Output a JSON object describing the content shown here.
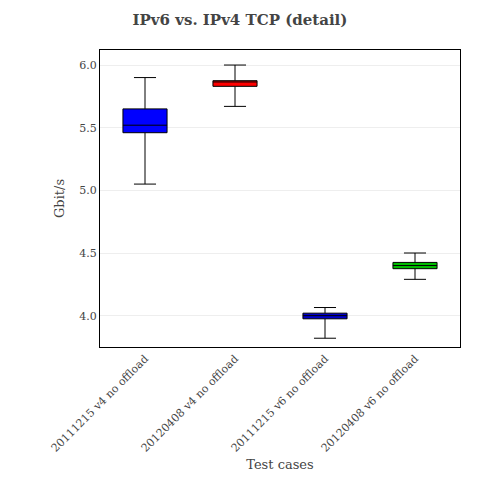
{
  "chart_data": {
    "type": "box",
    "title": "IPv6 vs. IPv4 TCP (detail)",
    "xlabel": "Test cases",
    "ylabel": "Gbit/s",
    "categories": [
      "20111215 v4 no offload",
      "20120408 v4 no offload",
      "20111215 v6 no offload",
      "20120408 v6 no offload"
    ],
    "boxes": [
      {
        "whislo": 5.05,
        "q1": 5.46,
        "med": 5.52,
        "q3": 5.65,
        "whishi": 5.9
      },
      {
        "whislo": 5.67,
        "q1": 5.83,
        "med": 5.865,
        "q3": 5.875,
        "whishi": 6.0
      },
      {
        "whislo": 3.82,
        "q1": 3.975,
        "med": 4.0,
        "q3": 4.02,
        "whishi": 4.065
      },
      {
        "whislo": 4.29,
        "q1": 4.375,
        "med": 4.4,
        "q3": 4.425,
        "whishi": 4.5
      }
    ],
    "colors": [
      "#0000FF",
      "#FF0000",
      "#0000CC",
      "#00BB00"
    ],
    "ylim": [
      3.75,
      6.12
    ],
    "yticks": [
      {
        "value": 4.0,
        "label": "4.0"
      },
      4.5,
      {
        "value": 5.0,
        "label": "5.0"
      },
      5.5,
      {
        "value": 6.0,
        "label": "6.0"
      }
    ],
    "grid": true
  }
}
